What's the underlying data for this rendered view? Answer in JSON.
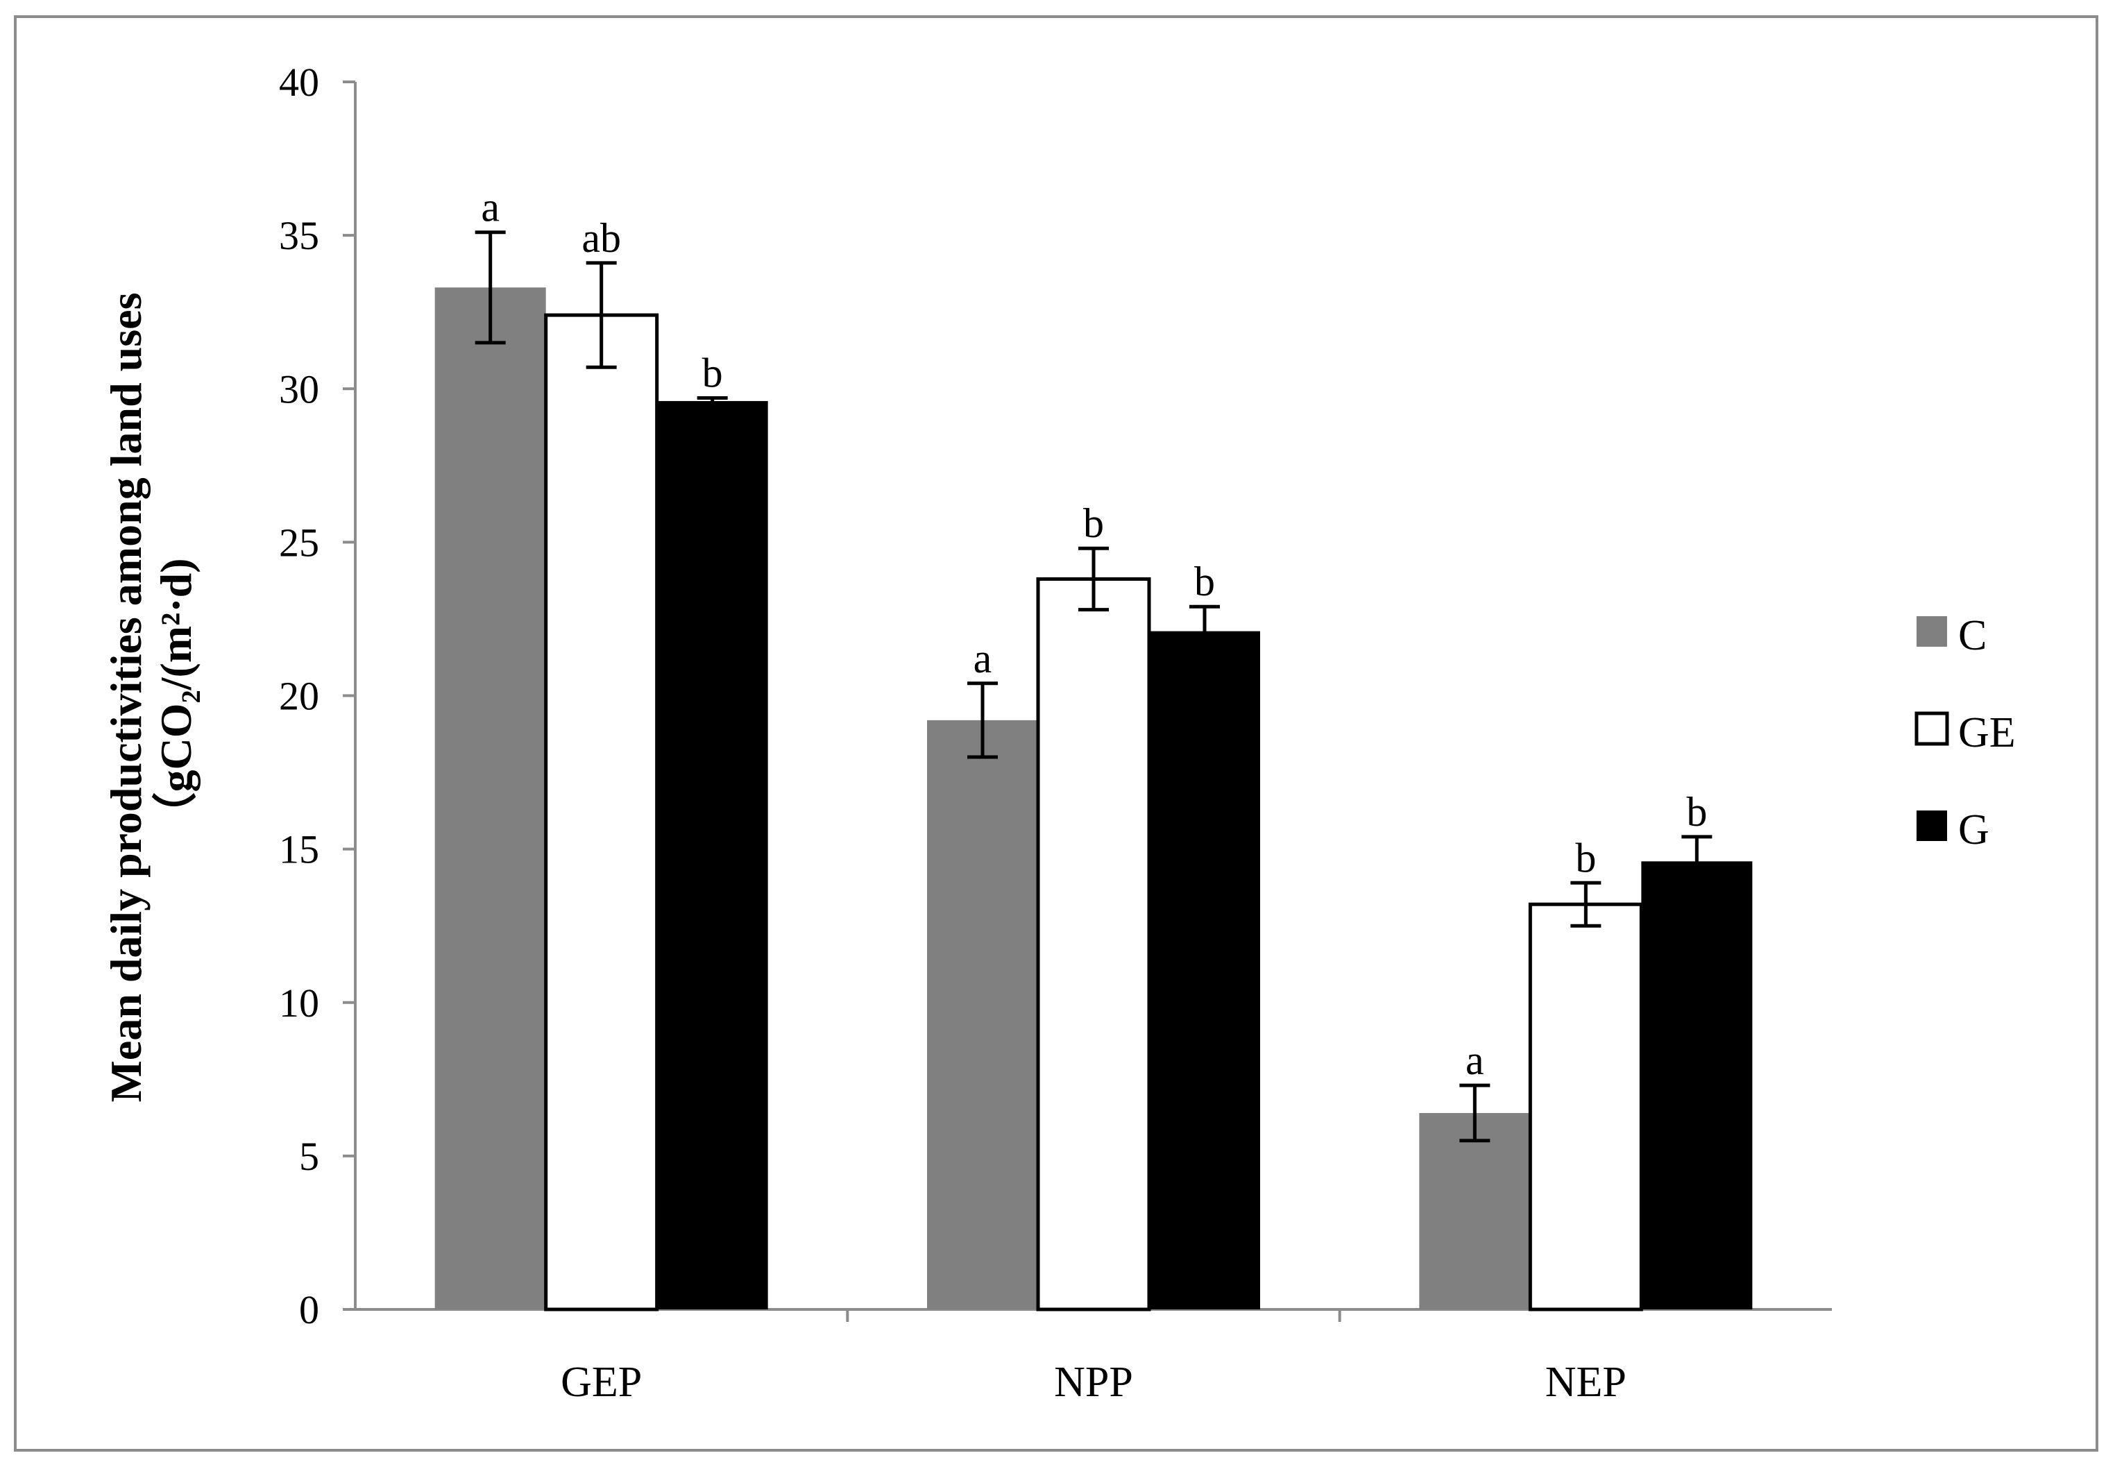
{
  "chart_data": {
    "type": "bar",
    "title": "",
    "xlabel": "",
    "ylabel_line1": "Mean daily productivities among land uses",
    "ylabel_line2": "（gCO₂/(m²·d)",
    "ylim": [
      0,
      40
    ],
    "yticks": [
      0,
      5,
      10,
      15,
      20,
      25,
      30,
      35,
      40
    ],
    "categories": [
      "GEP",
      "NPP",
      "NEP"
    ],
    "series": [
      {
        "name": "C",
        "color": "#808080",
        "values": [
          33.3,
          19.2,
          6.4
        ],
        "errors": [
          1.8,
          1.2,
          0.9
        ],
        "labels": [
          "a",
          "a",
          "a"
        ]
      },
      {
        "name": "GE",
        "color": "#ffffff",
        "values": [
          32.4,
          23.8,
          13.2
        ],
        "errors": [
          1.7,
          1.0,
          0.7
        ],
        "labels": [
          "ab",
          "b",
          "b"
        ]
      },
      {
        "name": "G",
        "color": "#000000",
        "values": [
          29.6,
          22.1,
          14.6
        ],
        "errors": [
          0.1,
          0.8,
          0.8
        ],
        "labels": [
          "b",
          "b",
          "b"
        ]
      }
    ],
    "legend_position": "right",
    "grid": false
  }
}
